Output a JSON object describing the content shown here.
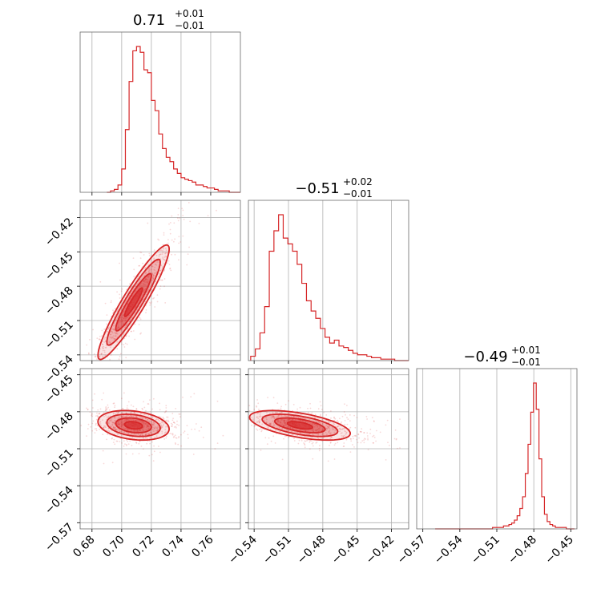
{
  "chart_data": {
    "type": "corner",
    "color": "#d62728",
    "parameters": [
      {
        "title": {
          "median": "0.71",
          "upper": "+0.01",
          "lower": "−0.01"
        },
        "range": [
          0.672,
          0.78
        ],
        "ticks": [
          0.68,
          0.7,
          0.72,
          0.74,
          0.76
        ],
        "tick_labels": [
          "0.68",
          "0.70",
          "0.72",
          "0.74",
          "0.76"
        ],
        "hist": {
          "range": [
            0.69,
            0.78
          ],
          "counts": [
            0,
            1,
            2,
            5,
            16,
            43,
            76,
            97,
            100,
            96,
            84,
            82,
            63,
            56,
            40,
            30,
            24,
            21,
            16,
            13,
            10,
            9,
            8,
            7,
            5,
            5,
            4,
            3,
            3,
            2,
            1,
            1,
            1,
            0,
            0,
            0
          ]
        }
      },
      {
        "title": {
          "median": "−0.51",
          "upper": "+0.02",
          "lower": "−0.01"
        },
        "range": [
          -0.545,
          -0.405
        ],
        "ticks": [
          -0.54,
          -0.51,
          -0.48,
          -0.45,
          -0.42
        ],
        "tick_labels": [
          "−0.54",
          "−0.51",
          "−0.48",
          "−0.45",
          "−0.42"
        ],
        "hist": {
          "range": [
            -0.543,
            -0.405
          ],
          "counts": [
            3,
            8,
            19,
            37,
            75,
            89,
            100,
            84,
            80,
            75,
            66,
            53,
            41,
            34,
            29,
            22,
            16,
            12,
            14,
            10,
            9,
            7,
            5,
            4,
            4,
            3,
            2,
            2,
            1,
            1,
            1,
            0,
            0,
            0
          ]
        }
      },
      {
        "title": {
          "median": "−0.49",
          "upper": "+0.01",
          "lower": "−0.01"
        },
        "range": [
          -0.575,
          -0.445
        ],
        "ticks": [
          -0.57,
          -0.54,
          -0.51,
          -0.48,
          -0.45
        ],
        "tick_labels": [
          "−0.57",
          "−0.54",
          "−0.51",
          "−0.48",
          "−0.45"
        ],
        "hist": {
          "range": [
            -0.56,
            -0.447
          ],
          "counts": [
            0,
            0,
            0,
            0,
            0,
            0,
            0,
            0,
            0,
            0,
            0,
            0,
            0,
            0,
            0,
            0,
            0,
            0,
            0,
            0,
            0,
            1,
            1,
            1,
            1,
            2,
            2,
            3,
            4,
            6,
            9,
            14,
            22,
            38,
            58,
            80,
            100,
            82,
            48,
            22,
            10,
            5,
            3,
            2,
            1,
            1,
            1,
            1,
            0,
            0,
            0
          ]
        }
      }
    ],
    "pairs": [
      {
        "x": 0,
        "y": 1,
        "density": {
          "mean": [
            0.708,
            -0.494
          ],
          "sd": [
            0.012,
            0.025
          ],
          "corr": 0.93
        },
        "contour_levels_sigma": [
          0.5,
          1.0,
          1.5,
          2.0
        ]
      },
      {
        "x": 0,
        "y": 2,
        "density": {
          "mean": [
            0.708,
            -0.491
          ],
          "sd": [
            0.012,
            0.006
          ],
          "corr": -0.25
        },
        "contour_levels_sigma": [
          0.5,
          1.0,
          1.5,
          2.0
        ]
      },
      {
        "x": 1,
        "y": 2,
        "density": {
          "mean": [
            -0.5,
            -0.491
          ],
          "sd": [
            0.022,
            0.006
          ],
          "corr": -0.55
        },
        "contour_levels_sigma": [
          0.5,
          1.0,
          1.5,
          2.0
        ]
      }
    ],
    "grid": true,
    "legend": "none"
  }
}
